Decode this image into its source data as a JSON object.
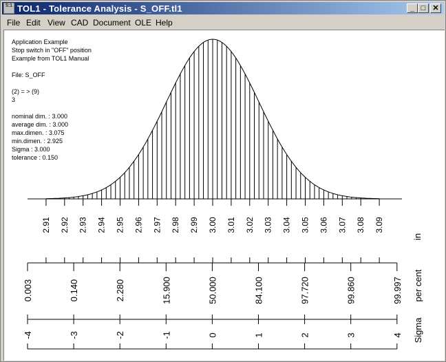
{
  "window": {
    "title": "TOL1 - Tolerance Analysis  -  S_OFF.tl1",
    "icon": "tol1-app-icon",
    "minimize": "_",
    "maximize": "□",
    "close": "✕"
  },
  "menu": [
    "File",
    "Edit",
    "View",
    "CAD",
    "Document",
    "OLE",
    "Help"
  ],
  "info": {
    "lines": [
      "Application Example",
      "Stop switch in \"OFF\" position",
      "Example from TOL1 Manual",
      "",
      "File: S_OFF",
      "",
      "(2) = > (9)",
      "3",
      "",
      "nominal dim. : 3.000",
      "average dim. : 3.000",
      "max.dimen. : 3.075",
      "min.dimen. : 2.925",
      "Sigma : 3.000",
      "tolerance : 0.150"
    ]
  },
  "chart_data": {
    "type": "area",
    "distribution": "normal",
    "mean": 3.0,
    "sigma_value": 0.025,
    "hatched": true,
    "dimension_axis": {
      "unit_label": "in",
      "ticks": [
        "2.91",
        "2.92",
        "2.93",
        "2.94",
        "2.95",
        "2.96",
        "2.97",
        "2.98",
        "2.99",
        "3.00",
        "3.01",
        "3.02",
        "3.03",
        "3.04",
        "3.05",
        "3.06",
        "3.07",
        "3.08",
        "3.09"
      ]
    },
    "percent_axis": {
      "unit_label": "per cent",
      "ticks": [
        "0.003",
        "0.140",
        "2.280",
        "15.900",
        "50.000",
        "84.100",
        "97.720",
        "99.860",
        "99.997"
      ]
    },
    "sigma_axis": {
      "unit_label": "Sigma",
      "ticks": [
        "-4",
        "-3",
        "-2",
        "-1",
        "0",
        "1",
        "2",
        "3",
        "4"
      ]
    }
  }
}
